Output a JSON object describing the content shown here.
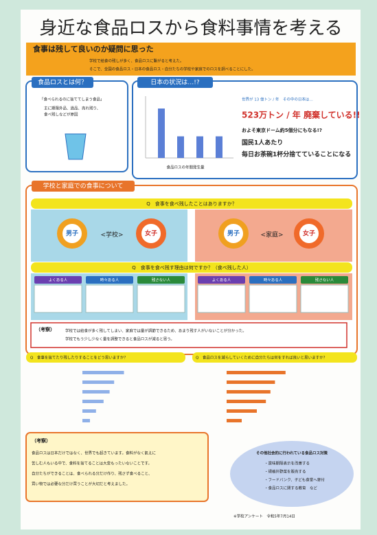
{
  "title": "身近な食品ロスから食料事情を考える",
  "intro": {
    "heading": "食事は残して良いのか疑問に思った",
    "lines": [
      "学校で給食の残しが多く、食品ロスに繋がると考えた。",
      "そこで、全国の食品ロス・日本の食品ロス・自分たちの学校や家庭でのロスを調べることにした。"
    ]
  },
  "definition": {
    "heading": "食品ロスとは何？",
    "quote": "「食べられるのに捨ててしまう食品」",
    "lines": [
      "主に期限外品、過品、売れ残り、",
      "食べ残しなどが原因"
    ]
  },
  "japan": {
    "heading": "日本の状況は…!?",
    "world": "世界が 13 億トン / 年　その中の日本は…",
    "amount": "523万トン / 年 廃棄している!!",
    "facts": [
      "およそ東京ドーム約5個分にもなる!?",
      "国民1人あたり",
      "毎日お茶碗1杯分捨てていることになる"
    ],
    "chart": {
      "caption": "食品ロスの年間発生量",
      "values": [
        80,
        35,
        35,
        35
      ]
    }
  },
  "survey": {
    "heading": "学校と家庭での食事について",
    "q1": "Q　食事を食べ残したことはありますか？",
    "boy": "男子",
    "girl": "女子",
    "school": "<学校>",
    "home": "<家庭>",
    "q2": "Q　食事を食べ残す理由は何ですか？（食べ残した人）",
    "columns": [
      "よくある人",
      "時々ある人",
      "残さない人"
    ],
    "note_heading": "（考察）",
    "note_lines": [
      "学校では給食が多く残してしまい、家庭では量が調節できるため、あまり残す人がいないことが分かった。",
      "学校でもう少し少なく量を調整できると食品ロスが減ると思う。"
    ]
  },
  "q3": {
    "question": "Q　食事を捨てたり残したりすることをどう思いますか？",
    "values": [
      55,
      42,
      36,
      28,
      18,
      10
    ]
  },
  "q4": {
    "question": "Q　食品ロスを減らしていくために自分たちは何をすれば良いと思いますか？",
    "values": [
      78,
      64,
      58,
      52,
      40,
      20
    ]
  },
  "conclusion": {
    "heading": "（考察）",
    "lines": [
      "食品ロスは日本だけではなく、世界でも起きています。食料がなく飢えに",
      "苦しむ人もいる中で、食料を捨てることは大変もったいないことです。",
      "自分たちができることは、食べられる分だけ作り、残さず食べること、",
      "買い物では必要な分だけ買うことが大切だと考えました。"
    ]
  },
  "measures": {
    "heading": "その他社会的に行われている食品ロス対策",
    "items": [
      "・賞味期限表示を改善する",
      "・規格外野菜を販売する",
      "・フードバンク、子ども食堂へ寄付",
      "・食品ロスに関する教育　など"
    ]
  },
  "footer": "※学校アンケート　令和5年7月14日"
}
